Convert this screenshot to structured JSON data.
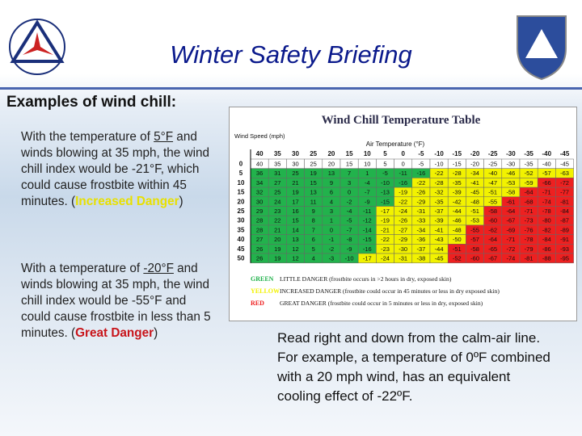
{
  "header": {
    "title": "Winter Safety Briefing",
    "subtitle": "Examples of wind chill:"
  },
  "left_text": [
    {
      "parts": [
        "With the temperature of ",
        "5°F",
        " and winds blowing at 35 mph, the wind chill index would be -21°F, which could cause frostbite within 45 minutes. (",
        "Increased Danger",
        ")"
      ]
    },
    {
      "parts": [
        "With a temperature of ",
        "-20°F",
        " and winds blowing  at 35 mph, the wind chill index would be -55°F and could cause frostbite in less than 5 minutes.   (",
        "Great Danger",
        ")"
      ]
    }
  ],
  "table": {
    "title": "Wind Chill Temperature Table",
    "row_header": "Wind Speed (mph)",
    "column_header": "Air Temperature (°F)",
    "temperatures": [
      40,
      35,
      30,
      25,
      20,
      15,
      10,
      5,
      0,
      -5,
      -10,
      -15,
      -20,
      -25,
      -30,
      -35,
      -40,
      -45
    ],
    "rows": [
      {
        "wind": 0,
        "levels": "wwwwwwwwwwwwwwwwww",
        "values": [
          40,
          35,
          30,
          25,
          20,
          15,
          10,
          5,
          0,
          -5,
          -10,
          -15,
          -20,
          -25,
          -30,
          -35,
          -40,
          -45
        ]
      },
      {
        "wind": 5,
        "levels": "ggggggggggyyyyyyyy",
        "values": [
          36,
          31,
          25,
          19,
          13,
          7,
          1,
          -5,
          -11,
          -16,
          -22,
          -28,
          -34,
          -40,
          -46,
          -52,
          -57,
          -63
        ]
      },
      {
        "wind": 10,
        "levels": "gggggggggyyyyyyyrr",
        "values": [
          34,
          27,
          21,
          15,
          9,
          3,
          -4,
          -10,
          -16,
          -22,
          -28,
          -35,
          -41,
          -47,
          -53,
          -59,
          -66,
          -72
        ]
      },
      {
        "wind": 15,
        "levels": "ggggggggyyyyyyyrrr",
        "values": [
          32,
          25,
          19,
          13,
          6,
          0,
          -7,
          -13,
          -19,
          -26,
          -32,
          -39,
          -45,
          -51,
          -58,
          -64,
          -71,
          -77
        ]
      },
      {
        "wind": 20,
        "levels": "ggggggggyyyyyyrrrr",
        "values": [
          30,
          24,
          17,
          11,
          4,
          -2,
          -9,
          -15,
          -22,
          -29,
          -35,
          -42,
          -48,
          -55,
          -61,
          -68,
          -74,
          -81
        ]
      },
      {
        "wind": 25,
        "levels": "gggggggyyyyyyrrrrr",
        "values": [
          29,
          23,
          16,
          9,
          3,
          -4,
          -11,
          -17,
          -24,
          -31,
          -37,
          -44,
          -51,
          -58,
          -64,
          -71,
          -78,
          -84
        ]
      },
      {
        "wind": 30,
        "levels": "gggggggyyyyyyrrrrr",
        "values": [
          28,
          22,
          15,
          8,
          1,
          -5,
          -12,
          -19,
          -26,
          -33,
          -39,
          -46,
          -53,
          -60,
          -67,
          -73,
          -80,
          -87
        ]
      },
      {
        "wind": 35,
        "levels": "gggggggyyyyyrrrrrr",
        "values": [
          28,
          21,
          14,
          7,
          0,
          -7,
          -14,
          -21,
          -27,
          -34,
          -41,
          -48,
          -55,
          -62,
          -69,
          -76,
          -82,
          -89
        ]
      },
      {
        "wind": 40,
        "levels": "gggggggyyyyyrrrrrr",
        "values": [
          27,
          20,
          13,
          6,
          -1,
          -8,
          -15,
          -22,
          -29,
          -36,
          -43,
          -50,
          -57,
          -64,
          -71,
          -78,
          -84,
          -91
        ]
      },
      {
        "wind": 45,
        "levels": "gggggggyyyyrrrrrrr",
        "values": [
          26,
          19,
          12,
          5,
          -2,
          -9,
          -16,
          -23,
          -30,
          -37,
          -44,
          -51,
          -58,
          -65,
          -72,
          -79,
          -86,
          -93
        ]
      },
      {
        "wind": 50,
        "levels": "ggggggyyyyyrrrrrrr",
        "values": [
          26,
          19,
          12,
          4,
          -3,
          -10,
          -17,
          -24,
          -31,
          -38,
          -45,
          -52,
          -60,
          -67,
          -74,
          -81,
          -88,
          -95
        ]
      }
    ],
    "legend": [
      {
        "key": "GREEN",
        "color": "#22b24c",
        "text": "LITTLE DANGER (frostbite occurs in >2 hours in dry, exposed skin)"
      },
      {
        "key": "YELLOW",
        "color": "#f2f200",
        "text": "INCREASED DANGER (frostbite could occur in 45 minutes or less in dry exposed skin)"
      },
      {
        "key": "RED",
        "color": "#ee2020",
        "text": "GREAT DANGER (frostbite could occur in 5 minutes or less in dry, exposed skin)"
      }
    ]
  },
  "caption": "Read right and down from the calm-air line. For example, a temperature of 0ºF combined with a 20 mph wind, has an equivalent cooling effect of -22ºF."
}
